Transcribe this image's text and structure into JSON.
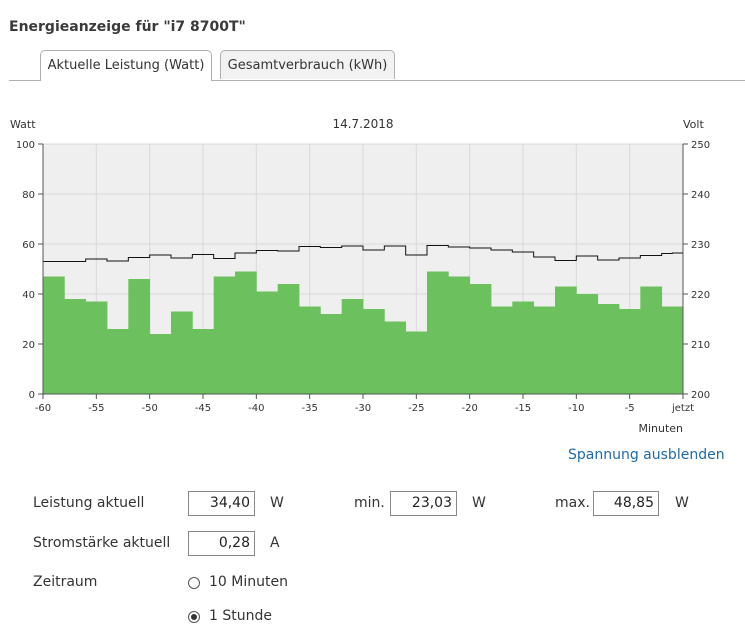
{
  "page": {
    "title": "Energieanzeige für \"i7 8700T\""
  },
  "tabs": [
    {
      "label": "Aktuelle Leistung (Watt)",
      "active": true
    },
    {
      "label": "Gesamtverbrauch (kWh)",
      "active": false
    }
  ],
  "chart_data": {
    "type": "bar",
    "title": "14.7.2018",
    "ylabel": "Watt",
    "y2label": "Volt",
    "xlabel": "Minuten",
    "ylim": [
      0,
      100
    ],
    "y2lim": [
      200,
      250
    ],
    "yticks": [
      0,
      20,
      40,
      60,
      80,
      100
    ],
    "y2ticks": [
      200,
      210,
      220,
      230,
      240,
      250
    ],
    "xlim": [
      -60,
      0
    ],
    "xticks": [
      {
        "v": -60,
        "label": "-60"
      },
      {
        "v": -55,
        "label": "-55"
      },
      {
        "v": -50,
        "label": "-50"
      },
      {
        "v": -45,
        "label": "-45"
      },
      {
        "v": -40,
        "label": "-40"
      },
      {
        "v": -35,
        "label": "-35"
      },
      {
        "v": -30,
        "label": "-30"
      },
      {
        "v": -25,
        "label": "-25"
      },
      {
        "v": -20,
        "label": "-20"
      },
      {
        "v": -15,
        "label": "-15"
      },
      {
        "v": -10,
        "label": "-10"
      },
      {
        "v": -5,
        "label": "-5"
      },
      {
        "v": 0,
        "label": "jetzt"
      }
    ],
    "grid": true,
    "series": [
      {
        "axis": "left",
        "style": "bar",
        "color": "#6cc15e",
        "x": [
          -60,
          -58,
          -56,
          -54,
          -52,
          -50,
          -48,
          -46,
          -44,
          -42,
          -40,
          -38,
          -36,
          -34,
          -32,
          -30,
          -28,
          -26,
          -24,
          -22,
          -20,
          -18,
          -16,
          -14,
          -12,
          -10,
          -8,
          -6,
          -4,
          -2
        ],
        "values": [
          47,
          38,
          37,
          26,
          46,
          24,
          33,
          26,
          47,
          49,
          41,
          44,
          35,
          32,
          38,
          34,
          29,
          25,
          49,
          47,
          44,
          35,
          37,
          35,
          43,
          40,
          36,
          34,
          43,
          35
        ]
      },
      {
        "axis": "right",
        "style": "step-line",
        "color": "#111111",
        "x": [
          -60,
          -56,
          -54,
          -52,
          -50,
          -48,
          -46,
          -44,
          -42,
          -40,
          -38,
          -36,
          -34,
          -32,
          -30,
          -28,
          -26,
          -24,
          -22,
          -20,
          -18,
          -16,
          -14,
          -12,
          -10,
          -8,
          -6,
          -4,
          -2,
          -1
        ],
        "values": [
          226.5,
          227,
          226.6,
          227.3,
          227.8,
          227.2,
          227.9,
          227.1,
          228.2,
          228.7,
          228.6,
          229.5,
          229.3,
          229.6,
          228.8,
          229.6,
          227.8,
          229.7,
          229.4,
          229.2,
          228.8,
          228.4,
          227.4,
          226.7,
          227.6,
          226.8,
          227.2,
          227.7,
          228.1,
          228.2
        ]
      }
    ]
  },
  "controls": {
    "toggle_voltage": "Spannung ausblenden",
    "power_label": "Leistung aktuell",
    "power_value": "34,40",
    "power_unit": "W",
    "min_label": "min.",
    "min_value": "23,03",
    "min_unit": "W",
    "max_label": "max.",
    "max_value": "48,85",
    "max_unit": "W",
    "current_label": "Stromstärke aktuell",
    "current_value": "0,28",
    "current_unit": "A",
    "range_label": "Zeitraum",
    "range_options": [
      {
        "label": "10 Minuten",
        "checked": false
      },
      {
        "label": "1 Stunde",
        "checked": true
      }
    ]
  }
}
